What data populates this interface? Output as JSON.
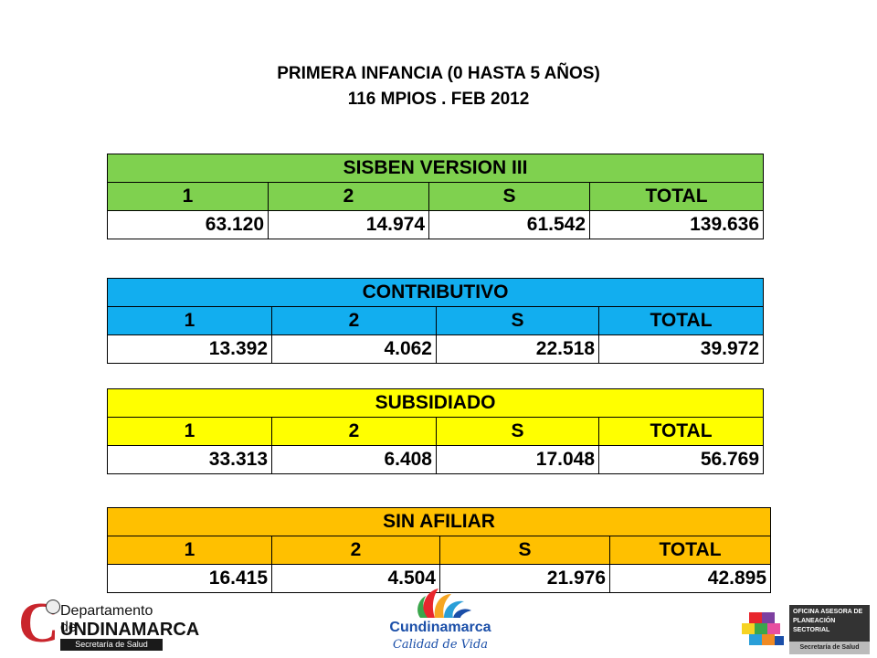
{
  "title_line1": "PRIMERA INFANCIA (0 HASTA 5 AÑOS)",
  "title_line2": "116 MPIOS . FEB 2012",
  "tables": [
    {
      "header": "SISBEN VERSION III",
      "cols": [
        "1",
        "2",
        "S",
        "TOTAL"
      ],
      "values": [
        "63.120",
        "14.974",
        "61.542",
        "139.636"
      ],
      "color": "#7fd14f"
    },
    {
      "header": "CONTRIBUTIVO",
      "cols": [
        "1",
        "2",
        "S",
        "TOTAL"
      ],
      "values": [
        "13.392",
        "4.062",
        "22.518",
        "39.972"
      ],
      "color": "#12aeef"
    },
    {
      "header": "SUBSIDIADO",
      "cols": [
        "1",
        "2",
        "S",
        "TOTAL"
      ],
      "values": [
        "33.313",
        "6.408",
        "17.048",
        "56.769"
      ],
      "color": "#ffff00"
    },
    {
      "header": "SIN AFILIAR",
      "cols": [
        "1",
        "2",
        "S",
        "TOTAL"
      ],
      "values": [
        "16.415",
        "4.504",
        "21.976",
        "42.895"
      ],
      "color": "#ffc000"
    }
  ],
  "logos": {
    "left_big_letter": "C",
    "left_line1": "Departamento de",
    "left_line2": "UNDINAMARCA",
    "left_line3": "Secretaría de Salud",
    "center_line1": "Cundinamarca",
    "center_line2": "Calidad de Vida",
    "right_line1": "OFICINA ASESORA DE",
    "right_line2": "PLANEACIÓN SECTORIAL",
    "right_line3": "Secretaría de Salud"
  }
}
